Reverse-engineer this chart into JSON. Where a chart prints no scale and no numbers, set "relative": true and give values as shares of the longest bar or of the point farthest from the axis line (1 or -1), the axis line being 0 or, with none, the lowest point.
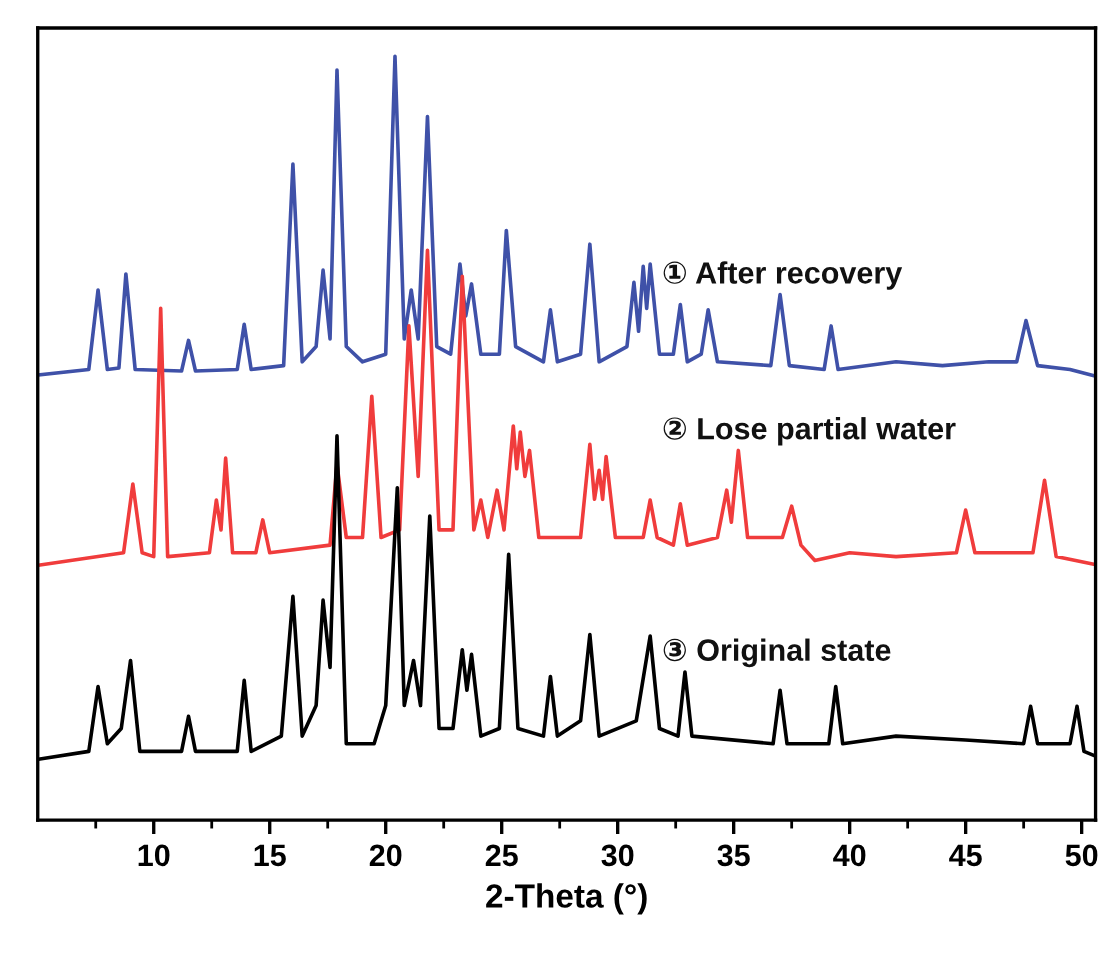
{
  "chart_data": {
    "type": "line",
    "xlabel": "2-Theta (°)",
    "relative": true,
    "xlim": [
      5,
      50.6
    ],
    "xticks": [
      10,
      15,
      20,
      25,
      30,
      35,
      40,
      45,
      50
    ],
    "grid": false,
    "legend": false,
    "marker": "none",
    "line_style": "solid",
    "series": [
      {
        "name": "① After recovery",
        "color": "#3f51a8",
        "x": [
          5.1,
          7.2,
          7.6,
          8.0,
          8.5,
          8.8,
          9.2,
          11.2,
          11.5,
          11.8,
          13.6,
          13.9,
          14.2,
          15.6,
          16.0,
          16.4,
          17.0,
          17.3,
          17.6,
          17.9,
          18.3,
          19.0,
          20.0,
          20.4,
          20.8,
          21.1,
          21.4,
          21.8,
          22.2,
          22.8,
          23.2,
          23.45,
          23.7,
          24.1,
          24.9,
          25.2,
          25.6,
          26.8,
          27.1,
          27.4,
          28.4,
          28.8,
          29.2,
          30.4,
          30.7,
          30.9,
          31.1,
          31.25,
          31.4,
          31.8,
          32.4,
          32.7,
          33.0,
          33.6,
          33.9,
          34.3,
          36.6,
          37.0,
          37.4,
          38.9,
          39.2,
          39.5,
          42,
          44,
          46,
          47.2,
          47.6,
          48.1,
          49.5,
          50.5
        ],
        "values": [
          0.583,
          0.59,
          0.694,
          0.59,
          0.592,
          0.715,
          0.59,
          0.588,
          0.628,
          0.588,
          0.59,
          0.649,
          0.59,
          0.595,
          0.859,
          0.6,
          0.62,
          0.72,
          0.63,
          0.982,
          0.62,
          0.6,
          0.61,
          1.0,
          0.63,
          0.694,
          0.63,
          0.921,
          0.62,
          0.61,
          0.728,
          0.66,
          0.702,
          0.61,
          0.61,
          0.772,
          0.62,
          0.6,
          0.668,
          0.6,
          0.61,
          0.754,
          0.6,
          0.62,
          0.704,
          0.64,
          0.725,
          0.67,
          0.728,
          0.61,
          0.61,
          0.675,
          0.6,
          0.61,
          0.668,
          0.6,
          0.595,
          0.688,
          0.595,
          0.59,
          0.647,
          0.59,
          0.6,
          0.595,
          0.6,
          0.6,
          0.654,
          0.595,
          0.59,
          0.582
        ]
      },
      {
        "name": "② Lose partial water",
        "color": "#f03c3c",
        "x": [
          5.1,
          8.7,
          9.1,
          9.5,
          10.0,
          10.3,
          10.6,
          12.4,
          12.7,
          12.9,
          13.1,
          13.4,
          14.4,
          14.7,
          15.0,
          17.6,
          17.9,
          18.3,
          19.0,
          19.4,
          19.8,
          20.6,
          21.0,
          21.4,
          21.8,
          22.3,
          22.9,
          23.3,
          23.8,
          24.1,
          24.4,
          24.8,
          25.1,
          25.5,
          25.65,
          25.8,
          26.0,
          26.2,
          26.6,
          28.4,
          28.8,
          29.0,
          29.2,
          29.35,
          29.5,
          29.9,
          31.1,
          31.4,
          31.7,
          32.4,
          32.7,
          33.0,
          34.3,
          34.7,
          34.9,
          35.2,
          35.6,
          37.1,
          37.5,
          37.9,
          38.5,
          40,
          42,
          44.6,
          45.0,
          45.4,
          47.9,
          48.4,
          48.9,
          50.5
        ],
        "values": [
          0.334,
          0.35,
          0.44,
          0.35,
          0.345,
          0.67,
          0.345,
          0.35,
          0.419,
          0.38,
          0.474,
          0.35,
          0.35,
          0.393,
          0.35,
          0.36,
          0.466,
          0.37,
          0.37,
          0.555,
          0.37,
          0.38,
          0.647,
          0.45,
          0.746,
          0.38,
          0.38,
          0.712,
          0.38,
          0.419,
          0.37,
          0.432,
          0.38,
          0.516,
          0.46,
          0.508,
          0.45,
          0.484,
          0.37,
          0.37,
          0.492,
          0.42,
          0.458,
          0.42,
          0.476,
          0.37,
          0.37,
          0.419,
          0.37,
          0.36,
          0.414,
          0.36,
          0.37,
          0.432,
          0.39,
          0.484,
          0.37,
          0.37,
          0.411,
          0.36,
          0.34,
          0.35,
          0.345,
          0.35,
          0.406,
          0.35,
          0.35,
          0.445,
          0.345,
          0.335
        ]
      },
      {
        "name": "③ Original state",
        "color": "#000000",
        "x": [
          5.1,
          7.2,
          7.6,
          8.0,
          8.6,
          9.0,
          9.4,
          11.2,
          11.5,
          11.8,
          13.6,
          13.9,
          14.2,
          15.5,
          16.0,
          16.4,
          17.0,
          17.3,
          17.6,
          17.9,
          18.3,
          19.5,
          20.0,
          20.5,
          20.8,
          21.2,
          21.5,
          21.9,
          22.3,
          22.9,
          23.3,
          23.5,
          23.7,
          24.1,
          24.9,
          25.3,
          25.7,
          26.8,
          27.1,
          27.4,
          28.4,
          28.8,
          29.2,
          30.8,
          31.4,
          31.8,
          32.6,
          32.9,
          33.2,
          36.7,
          37.0,
          37.3,
          39.1,
          39.4,
          39.7,
          42,
          45,
          47.5,
          47.8,
          48.1,
          49.5,
          49.8,
          50.1,
          50.5
        ],
        "values": [
          0.08,
          0.09,
          0.175,
          0.1,
          0.12,
          0.209,
          0.09,
          0.09,
          0.136,
          0.09,
          0.09,
          0.183,
          0.09,
          0.11,
          0.293,
          0.11,
          0.15,
          0.288,
          0.2,
          0.503,
          0.1,
          0.1,
          0.15,
          0.435,
          0.15,
          0.209,
          0.15,
          0.398,
          0.12,
          0.12,
          0.223,
          0.17,
          0.217,
          0.11,
          0.12,
          0.348,
          0.12,
          0.11,
          0.188,
          0.11,
          0.13,
          0.243,
          0.11,
          0.13,
          0.241,
          0.12,
          0.11,
          0.194,
          0.11,
          0.1,
          0.17,
          0.1,
          0.1,
          0.175,
          0.1,
          0.11,
          0.105,
          0.1,
          0.149,
          0.1,
          0.1,
          0.149,
          0.09,
          0.085
        ]
      }
    ]
  }
}
